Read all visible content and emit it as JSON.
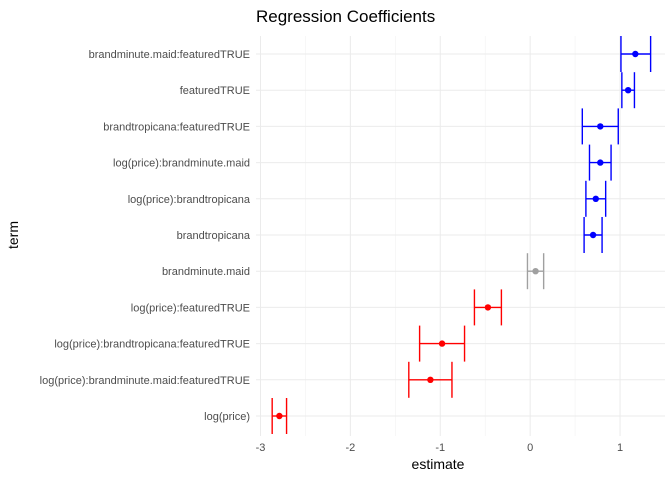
{
  "chart_data": {
    "type": "errorbar",
    "title": "Regression Coefficients",
    "xlabel": "estimate",
    "ylabel": "term",
    "xlim": [
      -3.05,
      1.5
    ],
    "x_ticks": [
      -3,
      -2,
      -1,
      0,
      1
    ],
    "x_tick_labels": [
      "-3",
      "-2",
      "-1",
      "0",
      "1"
    ],
    "grid": true,
    "colors": {
      "positive": "#0000ff",
      "negative": "#ff0000",
      "neutral": "#a0a0a0"
    },
    "terms": [
      {
        "term": "brandminute.maid:featuredTRUE",
        "estimate": 1.17,
        "lower": 1.01,
        "upper": 1.34,
        "group": "positive"
      },
      {
        "term": "featuredTRUE",
        "estimate": 1.09,
        "lower": 1.02,
        "upper": 1.16,
        "group": "positive"
      },
      {
        "term": "brandtropicana:featuredTRUE",
        "estimate": 0.78,
        "lower": 0.58,
        "upper": 0.98,
        "group": "positive"
      },
      {
        "term": "log(price):brandminute.maid",
        "estimate": 0.78,
        "lower": 0.66,
        "upper": 0.9,
        "group": "positive"
      },
      {
        "term": "log(price):brandtropicana",
        "estimate": 0.73,
        "lower": 0.62,
        "upper": 0.84,
        "group": "positive"
      },
      {
        "term": "brandtropicana",
        "estimate": 0.7,
        "lower": 0.6,
        "upper": 0.8,
        "group": "positive"
      },
      {
        "term": "brandminute.maid",
        "estimate": 0.06,
        "lower": -0.03,
        "upper": 0.15,
        "group": "neutral"
      },
      {
        "term": "log(price):featuredTRUE",
        "estimate": -0.47,
        "lower": -0.62,
        "upper": -0.32,
        "group": "negative"
      },
      {
        "term": "log(price):brandtropicana:featuredTRUE",
        "estimate": -0.98,
        "lower": -1.23,
        "upper": -0.73,
        "group": "negative"
      },
      {
        "term": "log(price):brandminute.maid:featuredTRUE",
        "estimate": -1.11,
        "lower": -1.35,
        "upper": -0.87,
        "group": "negative"
      },
      {
        "term": "log(price)",
        "estimate": -2.79,
        "lower": -2.87,
        "upper": -2.71,
        "group": "negative"
      }
    ]
  }
}
